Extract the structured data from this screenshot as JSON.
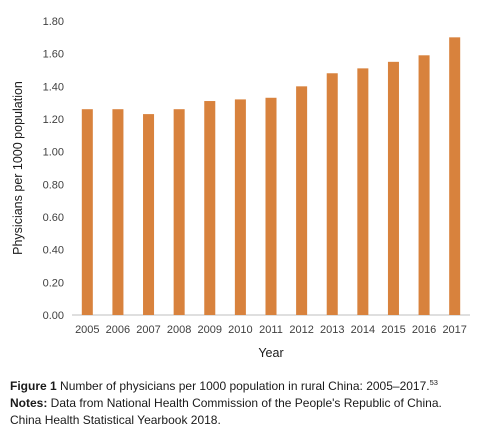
{
  "colors": {
    "bar": "#D8823D",
    "axis": "#bfbfbf",
    "text": "#404040"
  },
  "chart_data": {
    "type": "bar",
    "categories": [
      "2005",
      "2006",
      "2007",
      "2008",
      "2009",
      "2010",
      "2011",
      "2012",
      "2013",
      "2014",
      "2015",
      "2016",
      "2017"
    ],
    "values": [
      1.26,
      1.26,
      1.23,
      1.26,
      1.31,
      1.32,
      1.33,
      1.4,
      1.48,
      1.51,
      1.55,
      1.59,
      1.7
    ],
    "ylim": [
      0,
      1.8
    ],
    "yticks": [
      "0.00",
      "0.20",
      "0.40",
      "0.60",
      "0.80",
      "1.00",
      "1.20",
      "1.40",
      "1.60",
      "1.80"
    ],
    "xlabel": "Year",
    "ylabel": "Physicians per 1000 population",
    "grid": false
  },
  "caption": {
    "figure_label": "Figure 1",
    "figure_text": " Number of physicians per 1000 population in rural China: 2005–2017.",
    "figure_ref": "53",
    "notes_label": "Notes:",
    "notes_text": " Data from National Health Commission of the People's Republic of China. China Health Statistical Yearbook 2018."
  }
}
